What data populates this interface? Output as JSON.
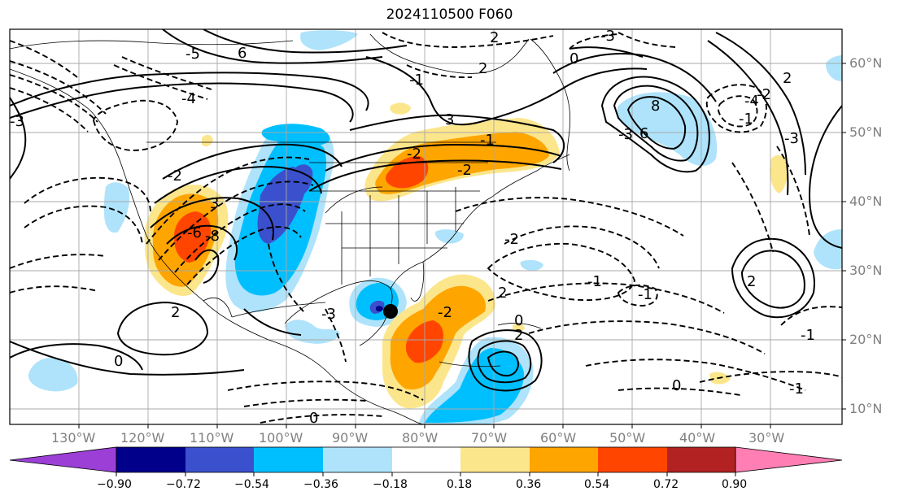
{
  "title": "2024110500 F060",
  "longitude_ticks": [
    "130°W",
    "120°W",
    "110°W",
    "100°W",
    "90°W",
    "80°W",
    "70°W",
    "60°W",
    "50°W",
    "40°W",
    "30°W"
  ],
  "latitude_ticks": [
    "60°N",
    "50°N",
    "40°N",
    "30°N",
    "20°N",
    "10°N"
  ],
  "colorbar": {
    "labels": [
      "−0.90",
      "−0.72",
      "−0.54",
      "−0.36",
      "−0.18",
      "0.18",
      "0.36",
      "0.54",
      "0.72",
      "0.90"
    ],
    "colors": [
      "#9b3fd6",
      "#00008b",
      "#3b50cc",
      "#00bfff",
      "#aee3fb",
      "#ffffff",
      "#fce68c",
      "#ffa500",
      "#ff4500",
      "#b22222",
      "#ff7fb4"
    ]
  },
  "contour_labels": [
    "2",
    "-3",
    "6",
    "-5",
    "0",
    "-1",
    "-4",
    "3",
    "-3",
    "8",
    "6",
    "-3",
    "-4",
    "-1",
    "-3",
    "-2",
    "-2",
    "-1",
    "-2",
    "-6",
    "-8",
    "3",
    "2",
    "-2",
    "-2",
    "-3",
    "-1",
    "2",
    "0",
    "-1",
    "2",
    "-1",
    "0",
    "-1",
    "0",
    "0",
    "2",
    "2",
    "-2",
    "2"
  ],
  "marker": "storm-center-dot"
}
